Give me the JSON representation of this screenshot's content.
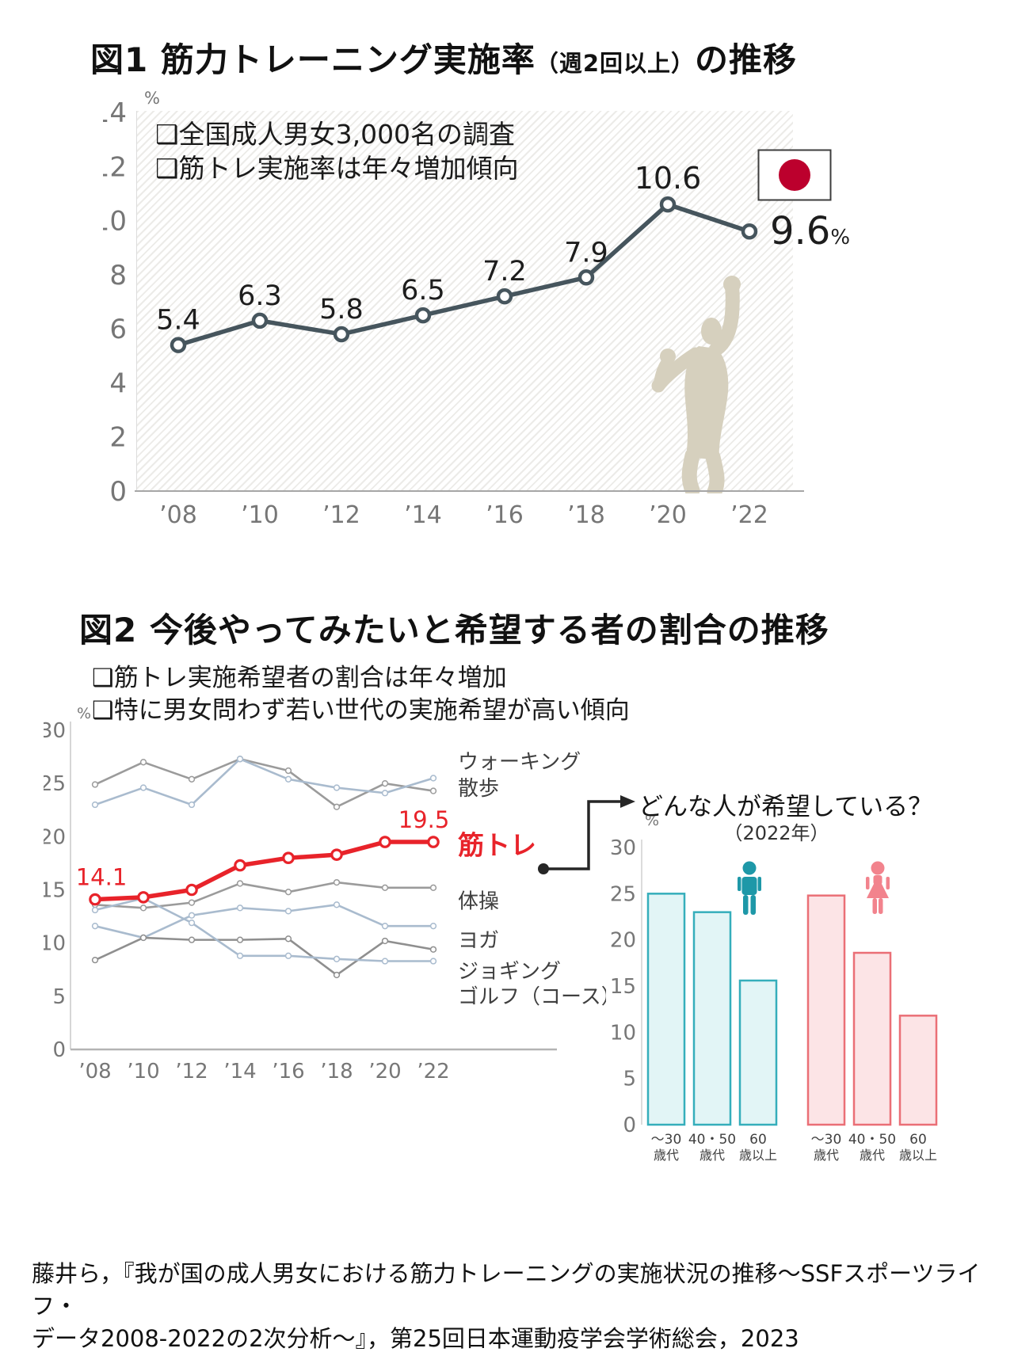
{
  "fig1": {
    "title_main": "図1 筋力トレーニング実施率",
    "title_paren": "（週2回以上）",
    "title_suffix": "の推移",
    "notes": [
      "❑全国成人男女3,000名の調査",
      "❑筋トレ実施率は年々増加傾向"
    ],
    "flag_red": "#BC002D",
    "line_color": "#46555D",
    "silhouette_color": "#D6D0BE"
  },
  "fig2": {
    "title": "図2 今後やってみたいと希望する者の割合の推移",
    "notes": [
      "❑筋トレ実施希望者の割合は年々増加",
      "❑特に男女問わず若い世代の実施希望が高い傾向"
    ]
  },
  "callout": {
    "title": "どんな人が希望している？",
    "subtitle": "（2022年）"
  },
  "footer": {
    "line1": "藤井ら，『我が国の成人男女における筋力トレーニングの実施状況の推移～SSFスポーツライフ・",
    "line2": "データ2008-2022の2次分析～』，第25回日本運動疫学会学術総会，2023"
  },
  "chart_data": [
    {
      "id": "fig1-line",
      "type": "line",
      "title": "筋力トレーニング実施率（週2回以上）の推移",
      "categories": [
        "’08",
        "’10",
        "’12",
        "’14",
        "’16",
        "’18",
        "’20",
        "’22"
      ],
      "series": [
        {
          "name": "筋トレ実施率（週2回以上）",
          "color": "#46555D",
          "values": [
            5.4,
            6.3,
            5.8,
            6.5,
            7.2,
            7.9,
            10.6,
            9.6
          ]
        }
      ],
      "point_labels": [
        "5.4",
        "6.3",
        "5.8",
        "6.5",
        "7.2",
        "7.9",
        "10.6",
        "9.6"
      ],
      "last_point_unit": "%",
      "ylabel": "%",
      "ylim": [
        0,
        14
      ],
      "ytick_step": 2,
      "grid": false,
      "background": "diagonal-hatch",
      "legend_position": "none"
    },
    {
      "id": "fig2-line",
      "type": "line",
      "title": "今後やってみたいと希望する者の割合の推移",
      "categories": [
        "’08",
        "’10",
        "’12",
        "’14",
        "’16",
        "’18",
        "’20",
        "’22"
      ],
      "series": [
        {
          "name": "ウォーキング",
          "color": "#9B9B9B",
          "label_pos": 27.0,
          "values": [
            24.9,
            27.0,
            25.4,
            27.3,
            26.2,
            22.8,
            25.0,
            24.3
          ]
        },
        {
          "name": "散歩",
          "color": "#A9BBCE",
          "label_pos": 24.5,
          "values": [
            23.0,
            24.6,
            23.0,
            27.3,
            25.4,
            24.6,
            24.1,
            25.5
          ]
        },
        {
          "name": "体操",
          "color": "#9B9B9B",
          "label_pos": 13.9,
          "values": [
            13.6,
            13.3,
            13.8,
            15.6,
            14.8,
            15.7,
            15.2,
            15.2
          ]
        },
        {
          "name": "ヨガ",
          "color": "#A9BBCE",
          "label_pos": 10.2,
          "values": [
            11.6,
            10.5,
            12.6,
            13.3,
            13.0,
            13.6,
            11.6,
            11.6
          ]
        },
        {
          "name": "ジョギング",
          "color": "#8F8F8F",
          "label_pos": 7.3,
          "values": [
            8.4,
            10.5,
            10.3,
            10.3,
            10.4,
            7.0,
            10.2,
            9.4
          ]
        },
        {
          "name": "ゴルフ（コース）",
          "color": "#A9BBCE",
          "label_pos": 4.9,
          "values": [
            13.1,
            14.2,
            11.9,
            8.8,
            8.8,
            8.5,
            8.3,
            8.3
          ]
        },
        {
          "name": "筋トレ",
          "color": "#E8232A",
          "emphasis": true,
          "label_pos": 19.2,
          "values": [
            14.1,
            14.3,
            15.0,
            17.3,
            18.0,
            18.3,
            19.5,
            19.5
          ]
        }
      ],
      "annotations": {
        "first": "14.1",
        "last": "19.5"
      },
      "ylabel": "%",
      "ylim": [
        0,
        30
      ],
      "ytick_step": 5,
      "grid": false,
      "legend_position": "right-of-lines"
    },
    {
      "id": "fig2-bar",
      "type": "bar",
      "title": "どんな人が希望している？（2022年）",
      "groups": [
        {
          "icon": "male-icon",
          "icon_color": "#1E98A8",
          "fill": "#E2F5F6",
          "stroke": "#35AEBB",
          "categories": [
            [
              "～30",
              "歳代"
            ],
            [
              "40・50",
              "歳代"
            ],
            [
              "60",
              "歳以上"
            ]
          ],
          "values": [
            25.0,
            23.0,
            15.6
          ]
        },
        {
          "icon": "female-icon",
          "icon_color": "#F2838D",
          "fill": "#FCE4E6",
          "stroke": "#EA6F76",
          "categories": [
            [
              "～30",
              "歳代"
            ],
            [
              "40・50",
              "歳代"
            ],
            [
              "60",
              "歳以上"
            ]
          ],
          "values": [
            24.8,
            18.6,
            11.8
          ]
        }
      ],
      "ylabel": "%",
      "ylim": [
        0,
        30
      ],
      "ytick_step": 5,
      "grid": false
    }
  ]
}
